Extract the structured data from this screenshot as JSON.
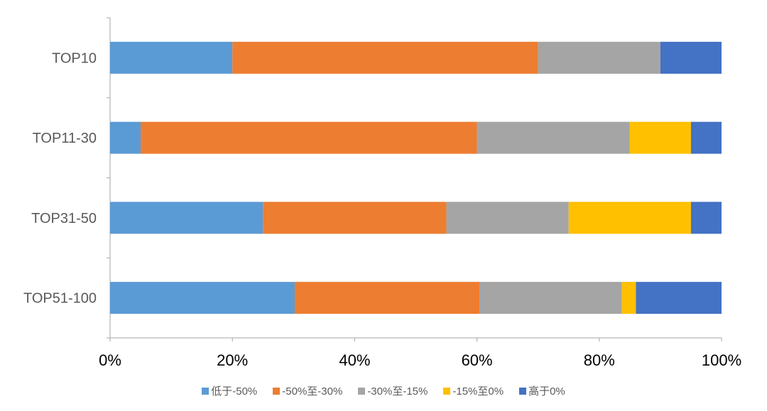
{
  "chart_data": {
    "type": "bar",
    "orientation": "horizontal",
    "stacked": "percent",
    "categories": [
      "TOP10",
      "TOP11-30",
      "TOP31-50",
      "TOP51-100"
    ],
    "series": [
      {
        "name": "低于-50%",
        "color": "#5B9BD5",
        "values": [
          20,
          5,
          25,
          30.2
        ]
      },
      {
        "name": "-50%至-30%",
        "color": "#ED7D31",
        "values": [
          50,
          55,
          30,
          30.2
        ]
      },
      {
        "name": "-30%至-15%",
        "color": "#A5A5A5",
        "values": [
          20,
          25,
          20,
          23.3
        ]
      },
      {
        "name": "-15%至0%",
        "color": "#FFC000",
        "values": [
          0,
          10,
          20,
          2.3
        ]
      },
      {
        "name": "高于0%",
        "color": "#4472C4",
        "values": [
          10,
          5,
          5,
          14.0
        ]
      }
    ],
    "xlim": [
      0,
      100
    ],
    "xticks": [
      "0%",
      "20%",
      "40%",
      "60%",
      "80%",
      "100%"
    ],
    "grid": false,
    "legend": "bottom"
  }
}
